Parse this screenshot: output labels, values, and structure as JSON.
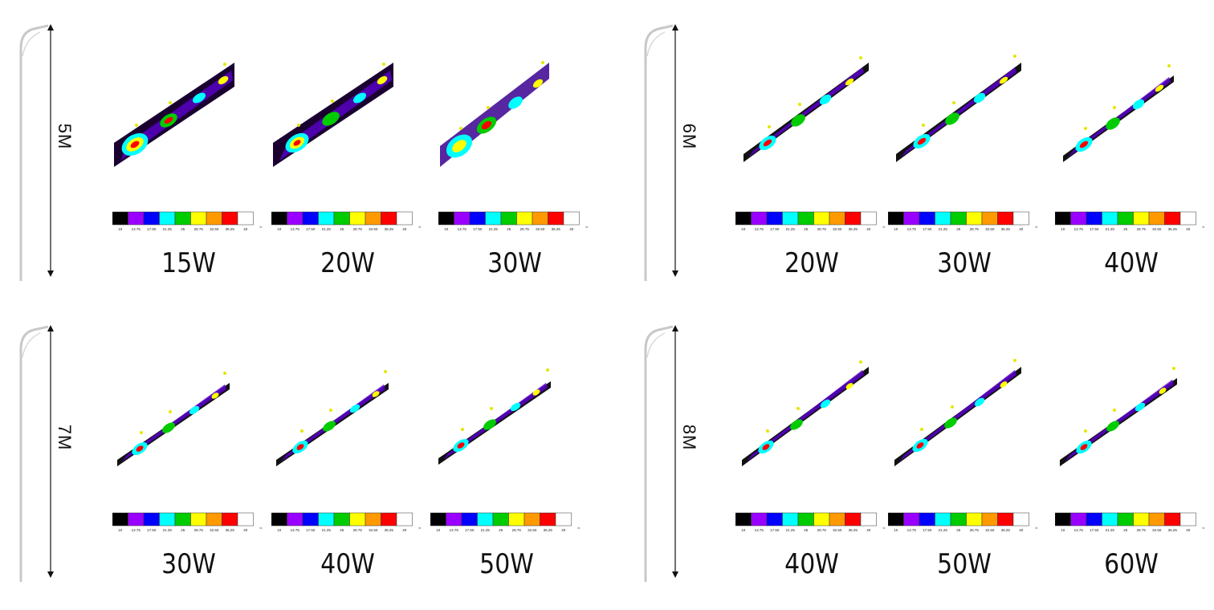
{
  "legend": {
    "colors": [
      "#000000",
      "#9900ff",
      "#0000ff",
      "#00ffff",
      "#00cc00",
      "#ffff00",
      "#ff9900",
      "#ff0000",
      "#ffffff"
    ],
    "tick_labels": [
      "10",
      "13.75",
      "17.50",
      "21.25",
      "25",
      "28.75",
      "32.50",
      "36.25",
      "40"
    ],
    "unit": "lx"
  },
  "groups": [
    {
      "height_label": "5M",
      "panels": [
        {
          "wattage": "15W"
        },
        {
          "wattage": "20W"
        },
        {
          "wattage": "30W"
        }
      ]
    },
    {
      "height_label": "6M",
      "panels": [
        {
          "wattage": "20W"
        },
        {
          "wattage": "30W"
        },
        {
          "wattage": "40W"
        }
      ]
    },
    {
      "height_label": "7M",
      "panels": [
        {
          "wattage": "30W"
        },
        {
          "wattage": "40W"
        },
        {
          "wattage": "50W"
        }
      ]
    },
    {
      "height_label": "8M",
      "panels": [
        {
          "wattage": "40W"
        },
        {
          "wattage": "50W"
        },
        {
          "wattage": "60W"
        }
      ]
    }
  ]
}
